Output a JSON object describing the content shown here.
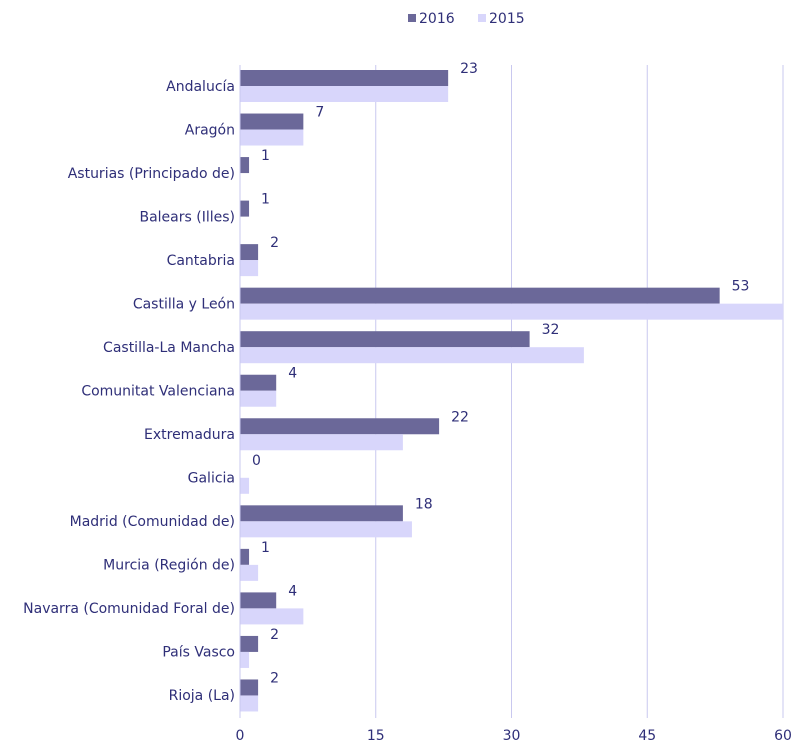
{
  "chart_data": {
    "type": "bar",
    "orientation": "horizontal",
    "categories": [
      "Andalucía",
      "Aragón",
      "Asturias (Principado de)",
      "Balears (Illes)",
      "Cantabria",
      "Castilla y León",
      "Castilla-La Mancha",
      "Comunitat Valenciana",
      "Extremadura",
      "Galicia",
      "Madrid (Comunidad de)",
      "Murcia (Región de)",
      "Navarra (Comunidad Foral de)",
      "País Vasco",
      "Rioja (La)"
    ],
    "series": [
      {
        "name": "2016",
        "color": "#6b6899",
        "values": [
          23,
          7,
          1,
          1,
          2,
          53,
          32,
          4,
          22,
          0,
          18,
          1,
          4,
          2,
          2
        ]
      },
      {
        "name": "2015",
        "color": "#d8d6fb",
        "values": [
          23,
          7,
          0,
          0,
          2,
          60,
          38,
          4,
          18,
          1,
          19,
          2,
          7,
          1,
          2
        ]
      }
    ],
    "xlim": [
      0,
      60
    ],
    "xticks": [
      0,
      15,
      30,
      45,
      60
    ],
    "grid": true,
    "legend": "top"
  }
}
